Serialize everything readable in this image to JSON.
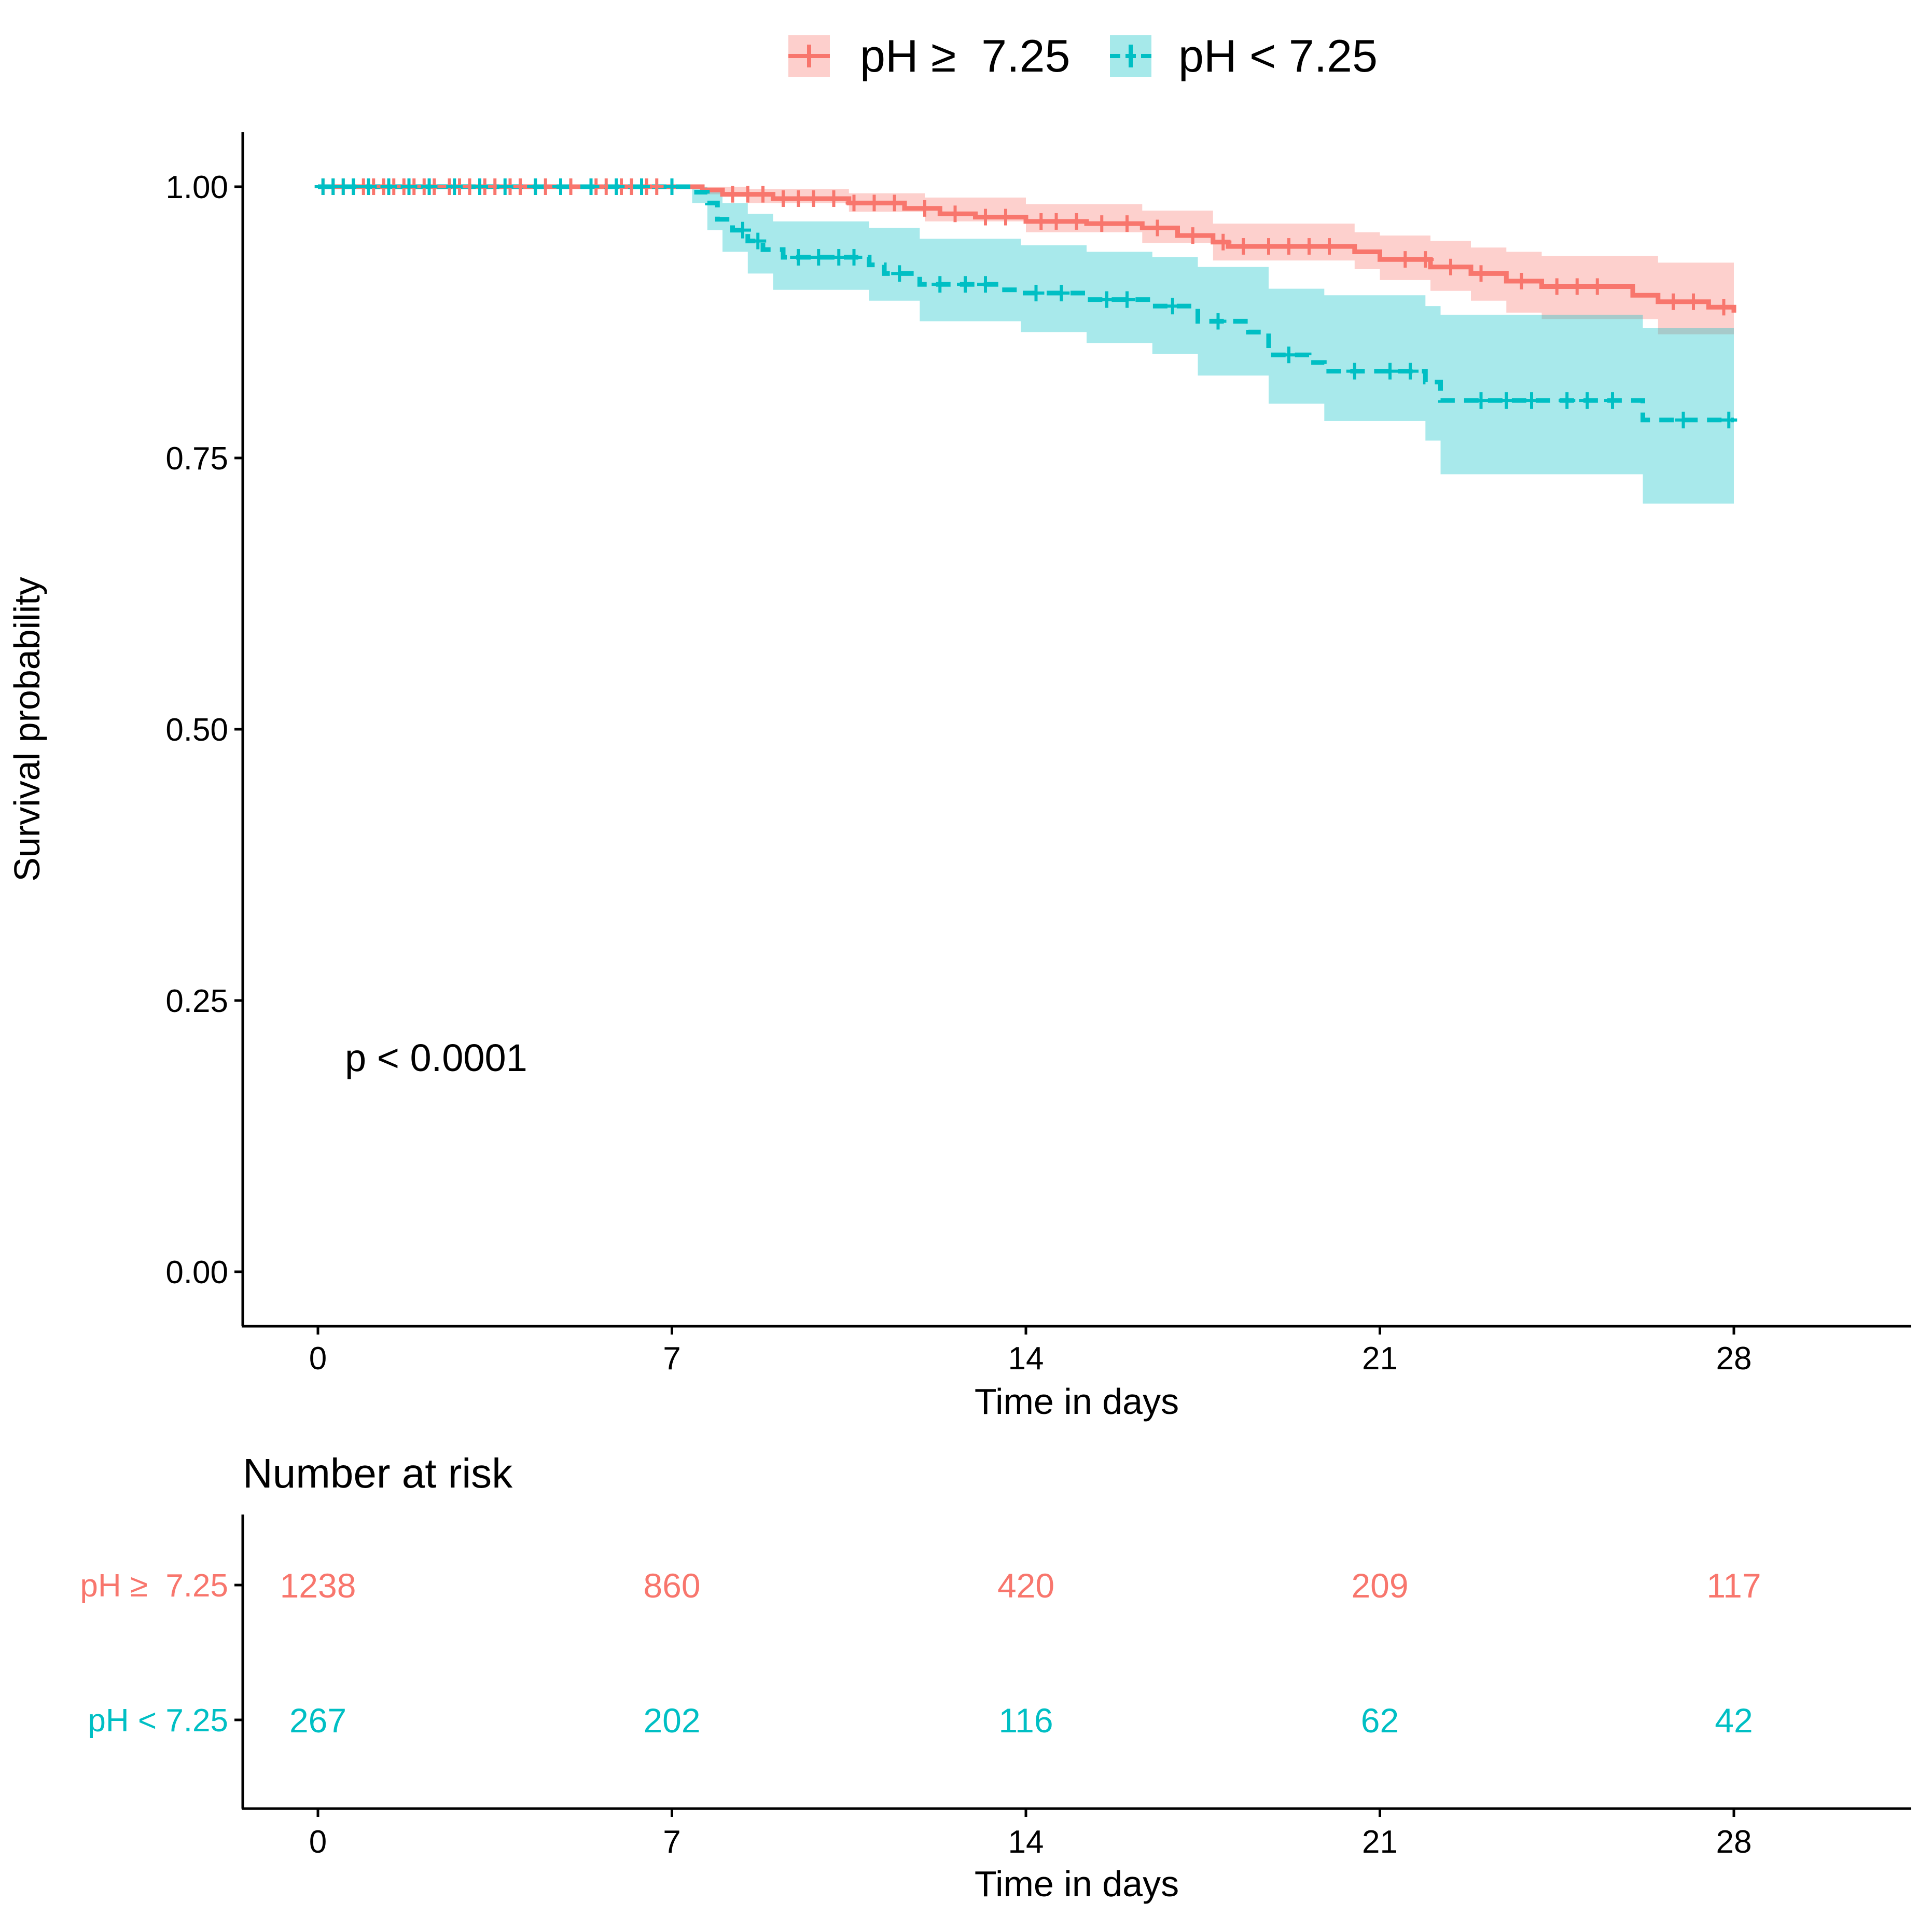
{
  "chart_data": {
    "type": "line",
    "subtype": "kaplan-meier survival curve",
    "legend": {
      "position": "top",
      "entries": [
        {
          "name": "pH ≥  7.25",
          "color": "#F8766D",
          "band_color": "#F8766D",
          "linestyle": "solid"
        },
        {
          "name": "pH < 7.25",
          "color": "#00BFC4",
          "band_color": "#00BFC4",
          "linestyle": "dashed"
        }
      ]
    },
    "ylabel": "Survival probability",
    "xlabel": "Time in days",
    "ylim": [
      -0.05,
      1.05
    ],
    "xlim": [
      -1.5,
      31.5
    ],
    "yticks": [
      "0.00",
      "0.25",
      "0.50",
      "0.75",
      "1.00"
    ],
    "ytick_values": [
      0,
      0.25,
      0.5,
      0.75,
      1
    ],
    "xticks": [
      "0",
      "7",
      "14",
      "21",
      "28"
    ],
    "xtick_values": [
      0,
      7,
      14,
      21,
      28
    ],
    "annotation": "p < 0.0001",
    "annotation_at": {
      "x": 0.5,
      "y": 0.19
    },
    "series": [
      {
        "name": "pH ≥  7.25",
        "color": "#F8766D",
        "dashed": false,
        "steps": [
          {
            "x": 0,
            "y": 1.0
          },
          {
            "x": 7.6,
            "y": 0.997
          },
          {
            "x": 8.0,
            "y": 0.993
          },
          {
            "x": 9.0,
            "y": 0.989
          },
          {
            "x": 10.5,
            "y": 0.985
          },
          {
            "x": 11.6,
            "y": 0.98
          },
          {
            "x": 12.3,
            "y": 0.975
          },
          {
            "x": 13.0,
            "y": 0.972
          },
          {
            "x": 14.0,
            "y": 0.968
          },
          {
            "x": 15.2,
            "y": 0.966
          },
          {
            "x": 16.3,
            "y": 0.962
          },
          {
            "x": 17.0,
            "y": 0.955
          },
          {
            "x": 17.7,
            "y": 0.949
          },
          {
            "x": 18.0,
            "y": 0.945
          },
          {
            "x": 20.5,
            "y": 0.94
          },
          {
            "x": 21.0,
            "y": 0.933
          },
          {
            "x": 22.0,
            "y": 0.926
          },
          {
            "x": 22.8,
            "y": 0.92
          },
          {
            "x": 23.5,
            "y": 0.913
          },
          {
            "x": 24.2,
            "y": 0.908
          },
          {
            "x": 26.0,
            "y": 0.9
          },
          {
            "x": 26.5,
            "y": 0.894
          },
          {
            "x": 27.5,
            "y": 0.889
          },
          {
            "x": 28.0,
            "y": 0.884
          }
        ],
        "band": [
          {
            "x": 0,
            "lo": 1.0,
            "hi": 1.0
          },
          {
            "x": 7.6,
            "lo": 0.993,
            "hi": 1.0
          },
          {
            "x": 8.5,
            "lo": 0.985,
            "hi": 0.998
          },
          {
            "x": 10.5,
            "lo": 0.977,
            "hi": 0.994
          },
          {
            "x": 12.0,
            "lo": 0.968,
            "hi": 0.99
          },
          {
            "x": 14.0,
            "lo": 0.958,
            "hi": 0.984
          },
          {
            "x": 16.3,
            "lo": 0.948,
            "hi": 0.978
          },
          {
            "x": 17.7,
            "lo": 0.932,
            "hi": 0.966
          },
          {
            "x": 20.5,
            "lo": 0.924,
            "hi": 0.958
          },
          {
            "x": 21.0,
            "lo": 0.914,
            "hi": 0.955
          },
          {
            "x": 22.0,
            "lo": 0.904,
            "hi": 0.95
          },
          {
            "x": 22.8,
            "lo": 0.895,
            "hi": 0.944
          },
          {
            "x": 23.5,
            "lo": 0.884,
            "hi": 0.94
          },
          {
            "x": 24.2,
            "lo": 0.878,
            "hi": 0.936
          },
          {
            "x": 26.5,
            "lo": 0.864,
            "hi": 0.93
          },
          {
            "x": 28.0,
            "lo": 0.855,
            "hi": 0.928
          }
        ],
        "censor_times": [
          0.1,
          0.3,
          0.5,
          0.7,
          0.9,
          1.1,
          1.3,
          1.5,
          1.7,
          1.9,
          2.1,
          2.3,
          2.6,
          2.8,
          3.0,
          3.3,
          3.5,
          3.8,
          4.0,
          4.3,
          4.5,
          4.8,
          5.0,
          5.5,
          5.7,
          6.0,
          6.2,
          6.5,
          6.7,
          7.0,
          8.2,
          8.5,
          8.8,
          9.2,
          9.5,
          9.8,
          10.2,
          10.6,
          11.0,
          11.4,
          12.0,
          12.6,
          13.2,
          13.6,
          14.3,
          14.6,
          15.0,
          15.5,
          16.0,
          16.6,
          17.3,
          17.9,
          18.3,
          18.8,
          19.2,
          19.6,
          20.0,
          21.5,
          21.9,
          22.4,
          23.0,
          23.8,
          24.5,
          24.9,
          25.3,
          26.8,
          27.2,
          27.8
        ]
      },
      {
        "name": "pH < 7.25",
        "color": "#00BFC4",
        "dashed": true,
        "steps": [
          {
            "x": 0,
            "y": 1.0
          },
          {
            "x": 7.4,
            "y": 0.995
          },
          {
            "x": 7.7,
            "y": 0.985
          },
          {
            "x": 7.9,
            "y": 0.97
          },
          {
            "x": 8.2,
            "y": 0.96
          },
          {
            "x": 8.5,
            "y": 0.95
          },
          {
            "x": 8.8,
            "y": 0.942
          },
          {
            "x": 9.2,
            "y": 0.935
          },
          {
            "x": 10.9,
            "y": 0.928
          },
          {
            "x": 11.2,
            "y": 0.92
          },
          {
            "x": 11.9,
            "y": 0.91
          },
          {
            "x": 13.5,
            "y": 0.905
          },
          {
            "x": 13.9,
            "y": 0.902
          },
          {
            "x": 15.2,
            "y": 0.896
          },
          {
            "x": 16.5,
            "y": 0.89
          },
          {
            "x": 17.4,
            "y": 0.876
          },
          {
            "x": 18.4,
            "y": 0.866
          },
          {
            "x": 18.8,
            "y": 0.845
          },
          {
            "x": 19.6,
            "y": 0.838
          },
          {
            "x": 19.9,
            "y": 0.83
          },
          {
            "x": 21.9,
            "y": 0.82
          },
          {
            "x": 22.2,
            "y": 0.803
          },
          {
            "x": 26.2,
            "y": 0.785
          },
          {
            "x": 28.0,
            "y": 0.785
          }
        ],
        "band": [
          {
            "x": 0,
            "lo": 1.0,
            "hi": 1.0
          },
          {
            "x": 7.4,
            "lo": 0.985,
            "hi": 1.0
          },
          {
            "x": 7.7,
            "lo": 0.96,
            "hi": 0.995
          },
          {
            "x": 8.0,
            "lo": 0.94,
            "hi": 0.985
          },
          {
            "x": 8.5,
            "lo": 0.92,
            "hi": 0.975
          },
          {
            "x": 9.0,
            "lo": 0.905,
            "hi": 0.968
          },
          {
            "x": 10.9,
            "lo": 0.895,
            "hi": 0.962
          },
          {
            "x": 11.9,
            "lo": 0.876,
            "hi": 0.952
          },
          {
            "x": 13.9,
            "lo": 0.866,
            "hi": 0.946
          },
          {
            "x": 15.2,
            "lo": 0.856,
            "hi": 0.94
          },
          {
            "x": 16.5,
            "lo": 0.846,
            "hi": 0.935
          },
          {
            "x": 17.4,
            "lo": 0.826,
            "hi": 0.926
          },
          {
            "x": 18.8,
            "lo": 0.8,
            "hi": 0.906
          },
          {
            "x": 19.9,
            "lo": 0.784,
            "hi": 0.9
          },
          {
            "x": 21.9,
            "lo": 0.766,
            "hi": 0.89
          },
          {
            "x": 22.2,
            "lo": 0.735,
            "hi": 0.882
          },
          {
            "x": 26.2,
            "lo": 0.708,
            "hi": 0.87
          },
          {
            "x": 28.0,
            "lo": 0.708,
            "hi": 0.87
          }
        ],
        "censor_times": [
          0.1,
          0.3,
          0.5,
          0.7,
          1.0,
          1.4,
          1.8,
          2.2,
          2.7,
          3.2,
          3.7,
          4.3,
          4.8,
          5.4,
          5.9,
          6.4,
          7.0,
          8.4,
          8.7,
          9.5,
          9.9,
          10.3,
          10.6,
          11.5,
          12.3,
          12.8,
          13.2,
          14.2,
          14.7,
          15.6,
          16.0,
          16.9,
          17.8,
          19.2,
          20.5,
          21.2,
          21.6,
          23.0,
          23.5,
          24.0,
          24.7,
          25.1,
          25.6,
          27.0,
          27.9
        ]
      }
    ],
    "risk_table": {
      "title": "Number at risk",
      "xlabel": "Time in days",
      "xticks": [
        "0",
        "7",
        "14",
        "21",
        "28"
      ],
      "rows": [
        {
          "label": "pH ≥  7.25",
          "color": "#F8766D",
          "values": [
            "1238",
            "860",
            "420",
            "209",
            "117"
          ]
        },
        {
          "label": "pH < 7.25",
          "color": "#00BFC4",
          "values": [
            "267",
            "202",
            "116",
            "62",
            "42"
          ]
        }
      ]
    }
  }
}
